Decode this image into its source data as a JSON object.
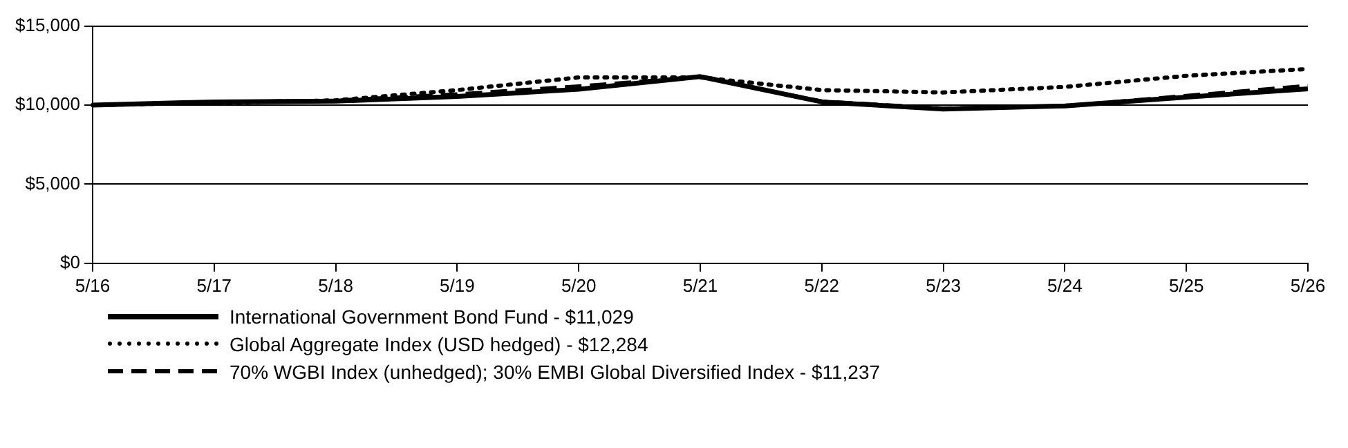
{
  "chart_data": {
    "type": "line",
    "categories": [
      "5/16",
      "5/17",
      "5/18",
      "5/19",
      "5/20",
      "5/21",
      "5/22",
      "5/23",
      "5/24",
      "5/25",
      "5/26"
    ],
    "ylim": [
      0,
      15000
    ],
    "yticks": [
      {
        "value": 0,
        "label": "$0"
      },
      {
        "value": 5000,
        "label": "$5,000"
      },
      {
        "value": 10000,
        "label": "$10,000"
      },
      {
        "value": 15000,
        "label": "$15,000"
      }
    ],
    "grid": "y",
    "legend": "bottom",
    "marker": "none",
    "series": [
      {
        "name": "International Government Bond Fund - $11,029",
        "color": "#000000",
        "line_style": "solid",
        "values": [
          10000,
          10200,
          10250,
          10550,
          11000,
          11800,
          10200,
          9750,
          9950,
          10500,
          11029
        ]
      },
      {
        "name": "Global Aggregate Index (USD hedged) - $12,284",
        "color": "#000000",
        "line_style": "dotted",
        "values": [
          10000,
          10150,
          10300,
          10950,
          11750,
          11750,
          10950,
          10800,
          11150,
          11850,
          12284
        ]
      },
      {
        "name": "70% WGBI Index (unhedged); 30% EMBI Global Diversified Index - $11,237",
        "color": "#000000",
        "line_style": "dashed",
        "values": [
          10000,
          10200,
          10300,
          10700,
          11200,
          11800,
          10250,
          9800,
          9950,
          10600,
          11237
        ]
      }
    ]
  }
}
